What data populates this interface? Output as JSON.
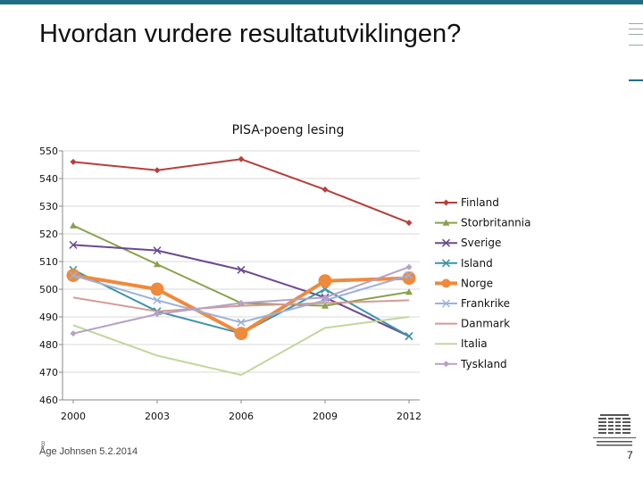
{
  "slide": {
    "title": "Hvordan vurdere resultatutviklingen?",
    "author_date": "Åge Johnsen 5.2.2014",
    "page_number": "7",
    "footer_mark": "8"
  },
  "colors": {
    "accent_bar": "#1e6f86"
  },
  "chart_data": {
    "type": "line",
    "title": "PISA-poeng lesing",
    "xlabel": "",
    "ylabel": "",
    "x": [
      2000,
      2003,
      2006,
      2009,
      2012
    ],
    "ylim": [
      460,
      550
    ],
    "yticks": [
      460,
      470,
      480,
      490,
      500,
      510,
      520,
      530,
      540,
      550
    ],
    "grid": true,
    "legend": "right",
    "series": [
      {
        "name": "Finland",
        "values": [
          546,
          543,
          547,
          536,
          524
        ],
        "color": "#b5403c",
        "marker": "diamond"
      },
      {
        "name": "Storbritannia",
        "values": [
          523,
          509,
          495,
          494,
          499
        ],
        "color": "#8aa14b",
        "marker": "triangle"
      },
      {
        "name": "Sverige",
        "values": [
          516,
          514,
          507,
          497,
          483
        ],
        "color": "#6a4a8e",
        "marker": "x"
      },
      {
        "name": "Island",
        "values": [
          507,
          492,
          484,
          500,
          483
        ],
        "color": "#3a93a8",
        "marker": "x"
      },
      {
        "name": "Norge",
        "values": [
          505,
          500,
          484,
          503,
          504
        ],
        "color": "#ee8a3c",
        "marker": "circle"
      },
      {
        "name": "Frankrike",
        "values": [
          505,
          496,
          488,
          496,
          505
        ],
        "color": "#9db1d9",
        "marker": "x"
      },
      {
        "name": "Danmark",
        "values": [
          497,
          492,
          494,
          495,
          496
        ],
        "color": "#d49a96",
        "marker": "none"
      },
      {
        "name": "Italia",
        "values": [
          487,
          476,
          469,
          486,
          490
        ],
        "color": "#c3d69b",
        "marker": "none"
      },
      {
        "name": "Tyskland",
        "values": [
          484,
          491,
          495,
          497,
          508
        ],
        "color": "#b4a2c7",
        "marker": "diamond"
      }
    ]
  }
}
